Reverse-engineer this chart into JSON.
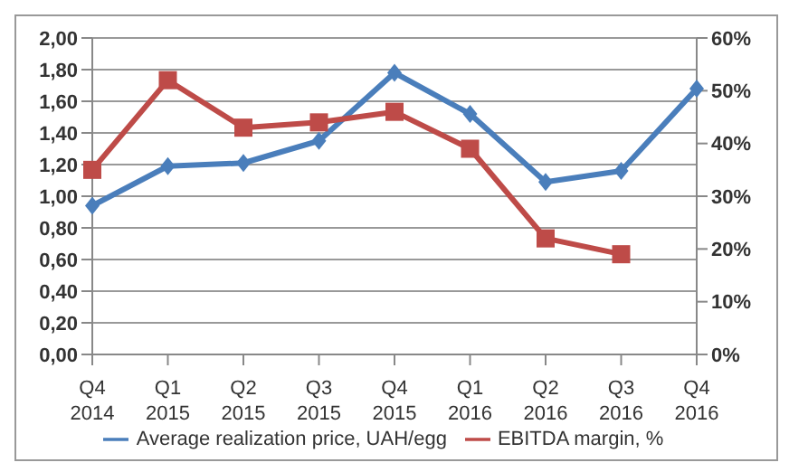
{
  "chart_data": {
    "type": "line",
    "categories": [
      "Q4\n2014",
      "Q1\n2015",
      "Q2\n2015",
      "Q3\n2015",
      "Q4\n2015",
      "Q1\n2016",
      "Q2\n2016",
      "Q3\n2016",
      "Q4\n2016"
    ],
    "series": [
      {
        "name": "Average realization price, UAH/egg",
        "color": "#4a7ebb",
        "marker": "diamond",
        "values": [
          0.94,
          1.19,
          1.21,
          1.35,
          1.78,
          1.52,
          1.09,
          1.16,
          1.68
        ]
      },
      {
        "name": "EBITDA margin, %",
        "color": "#be4b48",
        "marker": "square",
        "axis": "y2",
        "values": [
          35,
          52,
          43,
          44,
          46,
          39,
          22,
          19,
          null
        ]
      }
    ],
    "ylim": [
      0,
      2
    ],
    "yticks": [
      {
        "value": 0,
        "label": "0,00"
      },
      {
        "value": 0.2,
        "label": "0,20"
      },
      {
        "value": 0.4,
        "label": "0,40"
      },
      {
        "value": 0.6,
        "label": "0,60"
      },
      {
        "value": 0.8,
        "label": "0,80"
      },
      {
        "value": 1,
        "label": "1,00"
      },
      {
        "value": 1.2,
        "label": "1,20"
      },
      {
        "value": 1.4,
        "label": "1,40"
      },
      {
        "value": 1.6,
        "label": "1,60"
      },
      {
        "value": 1.8,
        "label": "1,80"
      },
      {
        "value": 2,
        "label": "2,00"
      }
    ],
    "y2lim": [
      0,
      60
    ],
    "y2ticks": [
      {
        "value": 0,
        "label": "0%"
      },
      {
        "value": 10,
        "label": "10%"
      },
      {
        "value": 20,
        "label": "20%"
      },
      {
        "value": 30,
        "label": "30%"
      },
      {
        "value": 40,
        "label": "40%"
      },
      {
        "value": 50,
        "label": "50%"
      },
      {
        "value": 60,
        "label": "60%"
      }
    ],
    "grid": "y",
    "legend": "bottom"
  }
}
